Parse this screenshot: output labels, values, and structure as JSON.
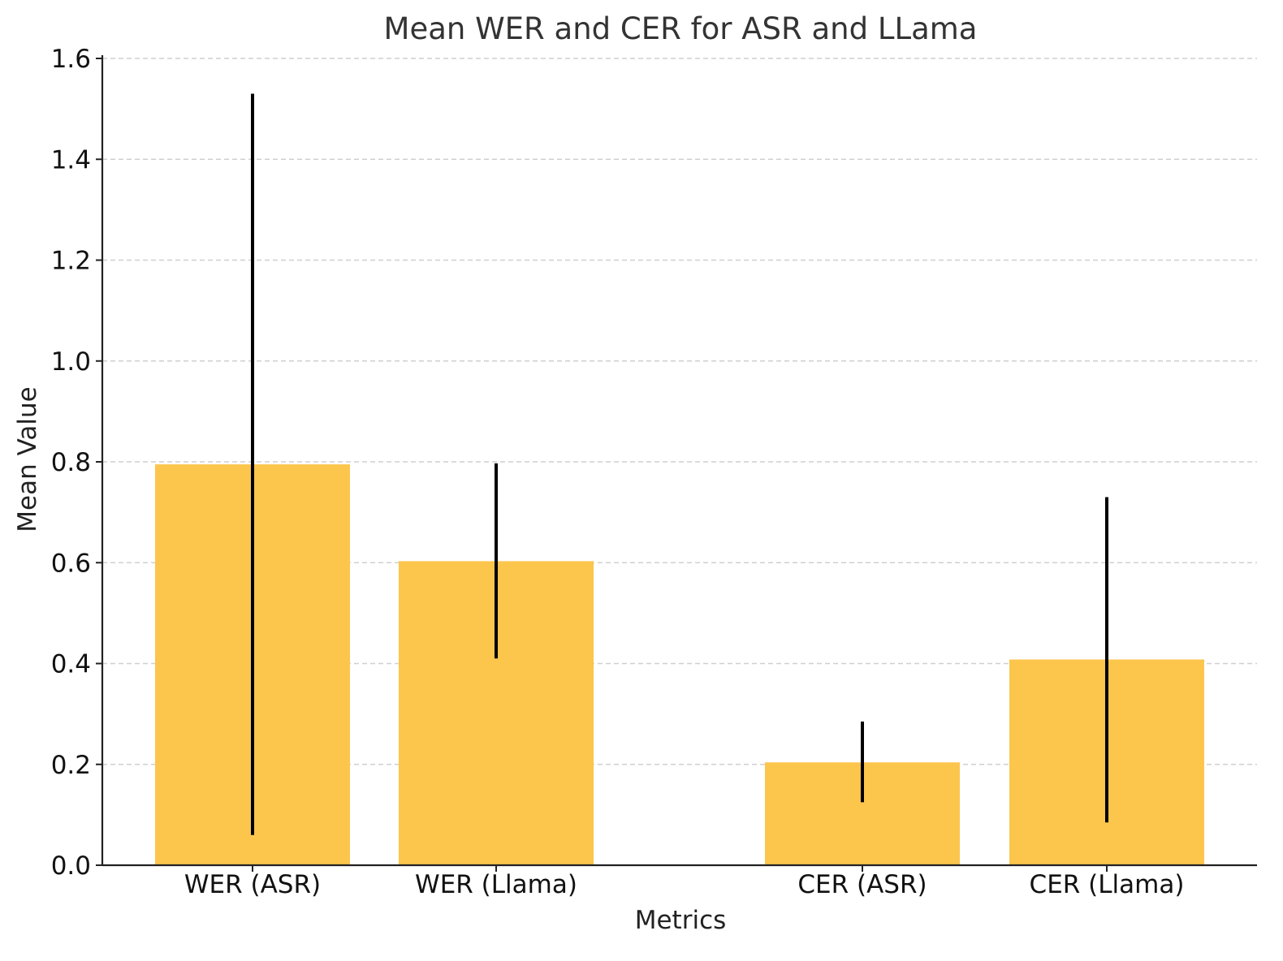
{
  "chart_data": {
    "type": "bar",
    "title": "Mean WER and CER for ASR and LLama",
    "xlabel": "Metrics",
    "ylabel": "Mean Value",
    "categories": [
      "WER (ASR)",
      "WER (Llama)",
      "CER (ASR)",
      "CER (Llama)"
    ],
    "values": [
      0.795,
      0.603,
      0.204,
      0.408
    ],
    "errors": [
      [
        0.06,
        1.53
      ],
      [
        0.41,
        0.797
      ],
      [
        0.125,
        0.285
      ],
      [
        0.085,
        0.73
      ]
    ],
    "ylim": [
      0,
      1.6
    ],
    "yticks": [
      "0.0",
      "0.2",
      "0.4",
      "0.6",
      "0.8",
      "1.0",
      "1.2",
      "1.4",
      "1.6"
    ],
    "grid": "horizontal dashed",
    "bar_color": "#fcc54c",
    "error_color": "#000000"
  }
}
